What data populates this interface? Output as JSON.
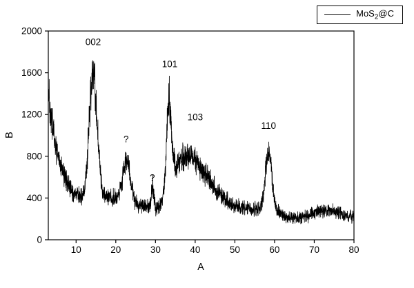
{
  "figure": {
    "background": "#ffffff",
    "line_color": "#000000",
    "axis_color": "#000000"
  },
  "chart_data": {
    "type": "line",
    "title": "",
    "xlabel": "A",
    "ylabel": "B",
    "xlim": [
      3,
      80
    ],
    "ylim": [
      0,
      2000
    ],
    "x_ticks": [
      10,
      20,
      30,
      40,
      50,
      60,
      70,
      80
    ],
    "y_ticks": [
      0,
      400,
      800,
      1200,
      1600,
      2000
    ],
    "grid": false,
    "legend": {
      "position": "top-right-outside",
      "series_label_pre": "MoS",
      "series_label_sub": "2",
      "series_label_post": "@C"
    },
    "series": [
      {
        "name": "MoS2@C",
        "color": "#000000",
        "description": "noisy XRD diffraction trace",
        "signal_model": {
          "seed": 20240613,
          "points": 2310,
          "baseline_points": [
            [
              3,
              310
            ],
            [
              6,
              300
            ],
            [
              11,
              320
            ],
            [
              14,
              330
            ],
            [
              17,
              330
            ],
            [
              20,
              330
            ],
            [
              27,
              320
            ],
            [
              29,
              300
            ],
            [
              30,
              245
            ],
            [
              31.8,
              235
            ],
            [
              32.6,
              270
            ],
            [
              35,
              300
            ],
            [
              45,
              300
            ],
            [
              55,
              295
            ],
            [
              58,
              290
            ],
            [
              61,
              260
            ],
            [
              63,
              215
            ],
            [
              66,
              205
            ],
            [
              68.5,
              230
            ],
            [
              71,
              270
            ],
            [
              74,
              280
            ],
            [
              76,
              260
            ],
            [
              78,
              235
            ],
            [
              80,
              225
            ]
          ],
          "low_angle_decay": {
            "amplitude": 1100,
            "x0": 3,
            "tau": 3.2
          },
          "peaks": [
            {
              "label": "002",
              "center": 14.3,
              "amplitude": 1220,
              "sigma": 1.0
            },
            {
              "label": "",
              "center": 18.5,
              "amplitude": 70,
              "sigma": 2.0
            },
            {
              "label": "?",
              "center": 22.7,
              "amplitude": 420,
              "sigma": 1.0
            },
            {
              "label": "?",
              "center": 29.3,
              "amplitude": 200,
              "sigma": 0.28
            },
            {
              "label": "101",
              "center": 33.4,
              "amplitude": 800,
              "sigma": 0.6
            },
            {
              "label": "103",
              "center": 37.5,
              "amplitude": 500,
              "sigma_left": 3.5,
              "sigma_right": 5.5
            },
            {
              "label": "110",
              "center": 58.5,
              "amplitude": 580,
              "sigma": 0.8
            }
          ],
          "noise": {
            "base": 30,
            "proportional": 0.13
          },
          "clamp": [
            60,
            1990
          ]
        }
      }
    ],
    "annotations": [
      {
        "text": "002",
        "x": 14.3,
        "y": 1890
      },
      {
        "text": "?",
        "x": 22.6,
        "y": 960
      },
      {
        "text": "?",
        "x": 29.2,
        "y": 590
      },
      {
        "text": "101",
        "x": 33.6,
        "y": 1680
      },
      {
        "text": "103",
        "x": 40.0,
        "y": 1170
      },
      {
        "text": "110",
        "x": 58.5,
        "y": 1090
      }
    ]
  }
}
